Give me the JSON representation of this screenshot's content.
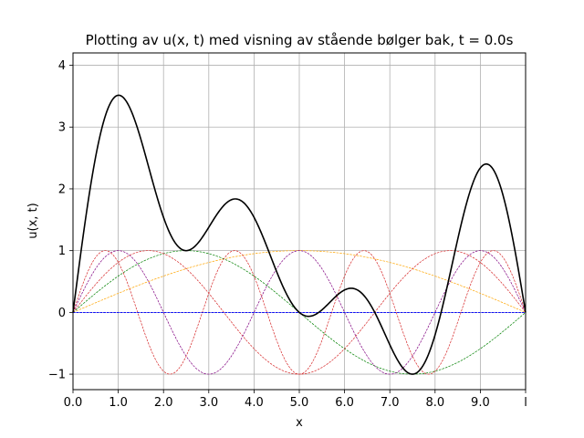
{
  "chart_data": {
    "type": "line",
    "title": "Plotting av u(x, t) med visning av stående bølger bak, t = 0.0s",
    "xlabel": "x",
    "ylabel": "u(x, t)",
    "xlim": [
      0,
      10
    ],
    "ylim": [
      -1.25,
      4.2
    ],
    "x_ticks": [
      {
        "value": 0,
        "label": "0.0"
      },
      {
        "value": 1,
        "label": "1.0"
      },
      {
        "value": 2,
        "label": "2.0"
      },
      {
        "value": 3,
        "label": "3.0"
      },
      {
        "value": 4,
        "label": "4.0"
      },
      {
        "value": 5,
        "label": "5.0"
      },
      {
        "value": 6,
        "label": "6.0"
      },
      {
        "value": 7,
        "label": "7.0"
      },
      {
        "value": 8,
        "label": "8.0"
      },
      {
        "value": 9,
        "label": "9.0"
      },
      {
        "value": 10,
        "label": "l"
      }
    ],
    "y_ticks": [
      {
        "value": -1,
        "label": "−1"
      },
      {
        "value": 0,
        "label": "0"
      },
      {
        "value": 1,
        "label": "1"
      },
      {
        "value": 2,
        "label": "2"
      },
      {
        "value": 3,
        "label": "3"
      },
      {
        "value": 4,
        "label": "4"
      }
    ],
    "grid": true,
    "string_length": 10,
    "time": 0.0,
    "sum_curve": {
      "color": "#000000",
      "style": "solid",
      "description": "sum of standing wave modes scaled by amplitudes",
      "amplitudes": [
        {
          "mode": 1,
          "a": 1.0
        },
        {
          "mode": 2,
          "a": 1.0
        },
        {
          "mode": 3,
          "a": 1.0
        },
        {
          "mode": 4,
          "a": 0.0
        },
        {
          "mode": 5,
          "a": 1.0
        },
        {
          "mode": 6,
          "a": 0.0
        },
        {
          "mode": 7,
          "a": 1.0
        },
        {
          "mode": 8,
          "a": 0.0
        }
      ]
    },
    "standing_waves": [
      {
        "mode": 1,
        "color": "#ffa500",
        "values_at_t0": "sin(1·πx/l)"
      },
      {
        "mode": 2,
        "color": "#008000",
        "values_at_t0": "sin(2·πx/l)"
      },
      {
        "mode": 3,
        "color": "#d62728",
        "values_at_t0": "sin(3·πx/l)"
      },
      {
        "mode": 4,
        "color": "#0000ff",
        "values_at_t0": "0"
      },
      {
        "mode": 5,
        "color": "#800080",
        "values_at_t0": "sin(5·πx/l)"
      },
      {
        "mode": 6,
        "color": "#0000ff",
        "values_at_t0": "0"
      },
      {
        "mode": 7,
        "color": "#d62728",
        "values_at_t0": "sin(7·πx/l)"
      },
      {
        "mode": 8,
        "color": "#0000ff",
        "values_at_t0": "0"
      }
    ]
  }
}
